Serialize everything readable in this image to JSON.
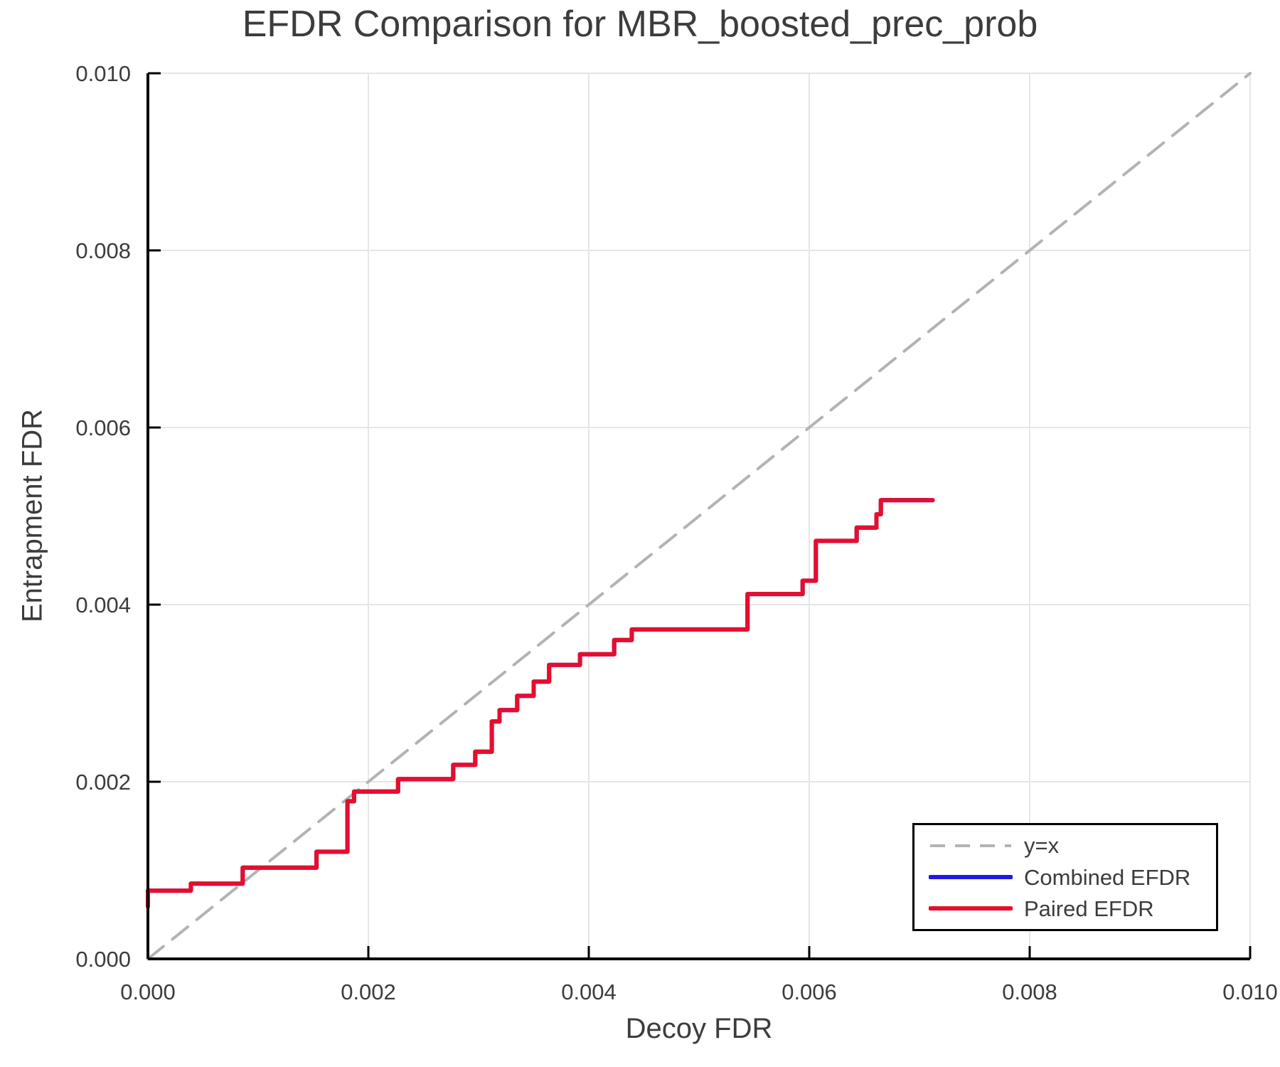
{
  "title": "EFDR Comparison for MBR_boosted_prec_prob",
  "legend": {
    "position": "lower right",
    "items": [
      {
        "label": "y=x",
        "color": "#b3b3b3",
        "dash": true
      },
      {
        "label": "Combined EFDR",
        "color": "#2418e6",
        "dash": false
      },
      {
        "label": "Paired EFDR",
        "color": "#e60d2e",
        "dash": false
      }
    ]
  },
  "chart_data": {
    "type": "line",
    "title": "EFDR Comparison for MBR_boosted_prec_prob",
    "xlabel": "Decoy FDR",
    "ylabel": "Entrapment FDR",
    "xlim": [
      0.0,
      0.01
    ],
    "ylim": [
      0.0,
      0.01
    ],
    "grid": true,
    "legend_position": "lower right",
    "x_ticks": {
      "values": [
        0.0,
        0.002,
        0.004,
        0.006,
        0.008,
        0.01
      ],
      "labels": [
        "0.000",
        "0.002",
        "0.004",
        "0.006",
        "0.008",
        "0.010"
      ]
    },
    "y_ticks": {
      "values": [
        0.0,
        0.002,
        0.004,
        0.006,
        0.008,
        0.01
      ],
      "labels": [
        "0.000",
        "0.002",
        "0.004",
        "0.006",
        "0.008",
        "0.010"
      ]
    },
    "colors": {
      "grid": "#e6e6e6",
      "axis": "#000000",
      "tick_text": "#3c3c3c",
      "diagonal": "#b3b3b3",
      "combined": "#2418e6",
      "paired": "#e60d2e"
    },
    "series": [
      {
        "name": "y=x",
        "color": "#b3b3b3",
        "dash": true,
        "points": [
          [
            0.0,
            0.0
          ],
          [
            0.01,
            0.01
          ]
        ]
      },
      {
        "name": "Combined EFDR",
        "color": "#2418e6",
        "dash": false,
        "points": [
          [
            0.0,
            0.00059
          ],
          [
            0.0,
            0.00077
          ],
          [
            0.00039,
            0.00077
          ],
          [
            0.00039,
            0.00085
          ],
          [
            0.00086,
            0.00085
          ],
          [
            0.00086,
            0.00103
          ],
          [
            0.00153,
            0.00103
          ],
          [
            0.00153,
            0.00121
          ],
          [
            0.00181,
            0.00121
          ],
          [
            0.00181,
            0.00178
          ],
          [
            0.00187,
            0.00178
          ],
          [
            0.00187,
            0.00189
          ],
          [
            0.00227,
            0.00189
          ],
          [
            0.00227,
            0.00203
          ],
          [
            0.00277,
            0.00203
          ],
          [
            0.00277,
            0.00219
          ],
          [
            0.00297,
            0.00219
          ],
          [
            0.00297,
            0.00234
          ],
          [
            0.00312,
            0.00234
          ],
          [
            0.00312,
            0.00268
          ],
          [
            0.00319,
            0.00268
          ],
          [
            0.00319,
            0.00281
          ],
          [
            0.00335,
            0.00281
          ],
          [
            0.00335,
            0.00297
          ],
          [
            0.0035,
            0.00297
          ],
          [
            0.0035,
            0.00313
          ],
          [
            0.00364,
            0.00313
          ],
          [
            0.00364,
            0.00332
          ],
          [
            0.00392,
            0.00332
          ],
          [
            0.00392,
            0.00344
          ],
          [
            0.00423,
            0.00344
          ],
          [
            0.00423,
            0.0036
          ],
          [
            0.00439,
            0.0036
          ],
          [
            0.00439,
            0.00372
          ],
          [
            0.00544,
            0.00372
          ],
          [
            0.00544,
            0.00412
          ],
          [
            0.00594,
            0.00412
          ],
          [
            0.00594,
            0.00427
          ],
          [
            0.00606,
            0.00427
          ],
          [
            0.00606,
            0.00472
          ],
          [
            0.00643,
            0.00472
          ],
          [
            0.00643,
            0.00487
          ],
          [
            0.00661,
            0.00487
          ],
          [
            0.00661,
            0.00502
          ],
          [
            0.00665,
            0.00502
          ],
          [
            0.00665,
            0.00518
          ],
          [
            0.00712,
            0.00518
          ]
        ]
      },
      {
        "name": "Paired EFDR",
        "color": "#e60d2e",
        "dash": false,
        "points": [
          [
            0.0,
            0.00059
          ],
          [
            0.0,
            0.00077
          ],
          [
            0.00039,
            0.00077
          ],
          [
            0.00039,
            0.00085
          ],
          [
            0.00086,
            0.00085
          ],
          [
            0.00086,
            0.00103
          ],
          [
            0.00153,
            0.00103
          ],
          [
            0.00153,
            0.00121
          ],
          [
            0.00181,
            0.00121
          ],
          [
            0.00181,
            0.00178
          ],
          [
            0.00187,
            0.00178
          ],
          [
            0.00187,
            0.00189
          ],
          [
            0.00227,
            0.00189
          ],
          [
            0.00227,
            0.00203
          ],
          [
            0.00277,
            0.00203
          ],
          [
            0.00277,
            0.00219
          ],
          [
            0.00297,
            0.00219
          ],
          [
            0.00297,
            0.00234
          ],
          [
            0.00312,
            0.00234
          ],
          [
            0.00312,
            0.00268
          ],
          [
            0.00319,
            0.00268
          ],
          [
            0.00319,
            0.00281
          ],
          [
            0.00335,
            0.00281
          ],
          [
            0.00335,
            0.00297
          ],
          [
            0.0035,
            0.00297
          ],
          [
            0.0035,
            0.00313
          ],
          [
            0.00364,
            0.00313
          ],
          [
            0.00364,
            0.00332
          ],
          [
            0.00392,
            0.00332
          ],
          [
            0.00392,
            0.00344
          ],
          [
            0.00423,
            0.00344
          ],
          [
            0.00423,
            0.0036
          ],
          [
            0.00439,
            0.0036
          ],
          [
            0.00439,
            0.00372
          ],
          [
            0.00544,
            0.00372
          ],
          [
            0.00544,
            0.00412
          ],
          [
            0.00594,
            0.00412
          ],
          [
            0.00594,
            0.00427
          ],
          [
            0.00606,
            0.00427
          ],
          [
            0.00606,
            0.00472
          ],
          [
            0.00643,
            0.00472
          ],
          [
            0.00643,
            0.00487
          ],
          [
            0.00661,
            0.00487
          ],
          [
            0.00661,
            0.00502
          ],
          [
            0.00665,
            0.00502
          ],
          [
            0.00665,
            0.00518
          ],
          [
            0.00712,
            0.00518
          ]
        ]
      }
    ]
  }
}
